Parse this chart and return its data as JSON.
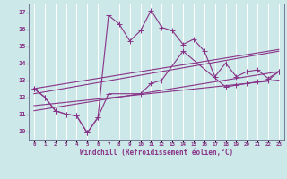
{
  "background_color": "#cce8e8",
  "grid_color": "#ffffff",
  "line_color": "#883388",
  "xlabel": "Windchill (Refroidissement éolien,°C)",
  "ylim": [
    9.5,
    17.5
  ],
  "xlim": [
    -0.5,
    23.5
  ],
  "yticks": [
    10,
    11,
    12,
    13,
    14,
    15,
    16,
    17
  ],
  "xticks": [
    0,
    1,
    2,
    3,
    4,
    5,
    6,
    7,
    8,
    9,
    10,
    11,
    12,
    13,
    14,
    15,
    16,
    17,
    18,
    19,
    20,
    21,
    22,
    23
  ],
  "series1_x": [
    0,
    1,
    2,
    3,
    4,
    5,
    6,
    7,
    8,
    9,
    10,
    11,
    12,
    13,
    14,
    15,
    16,
    17,
    18,
    19,
    20,
    21,
    22,
    23
  ],
  "series1_y": [
    12.5,
    12.0,
    11.2,
    11.0,
    10.9,
    9.9,
    10.8,
    16.8,
    16.3,
    15.3,
    15.9,
    17.1,
    16.1,
    15.9,
    15.1,
    15.4,
    14.7,
    13.2,
    14.0,
    13.2,
    13.5,
    13.6,
    13.1,
    13.5
  ],
  "series2_x": [
    0,
    1,
    2,
    3,
    4,
    5,
    6,
    7,
    10,
    11,
    12,
    14,
    18,
    19,
    20,
    21,
    22,
    23
  ],
  "series2_y": [
    12.5,
    12.0,
    11.2,
    11.0,
    10.9,
    9.9,
    10.8,
    12.2,
    12.2,
    12.8,
    13.0,
    14.7,
    12.6,
    12.7,
    12.8,
    12.9,
    13.0,
    13.5
  ],
  "series3_x": [
    0,
    23
  ],
  "series3_y": [
    11.2,
    13.5
  ],
  "series4_x": [
    0,
    23
  ],
  "series4_y": [
    12.2,
    14.7
  ],
  "series5_x": [
    0,
    23
  ],
  "series5_y": [
    11.5,
    13.0
  ],
  "series6_x": [
    0,
    23
  ],
  "series6_y": [
    12.5,
    14.8
  ]
}
